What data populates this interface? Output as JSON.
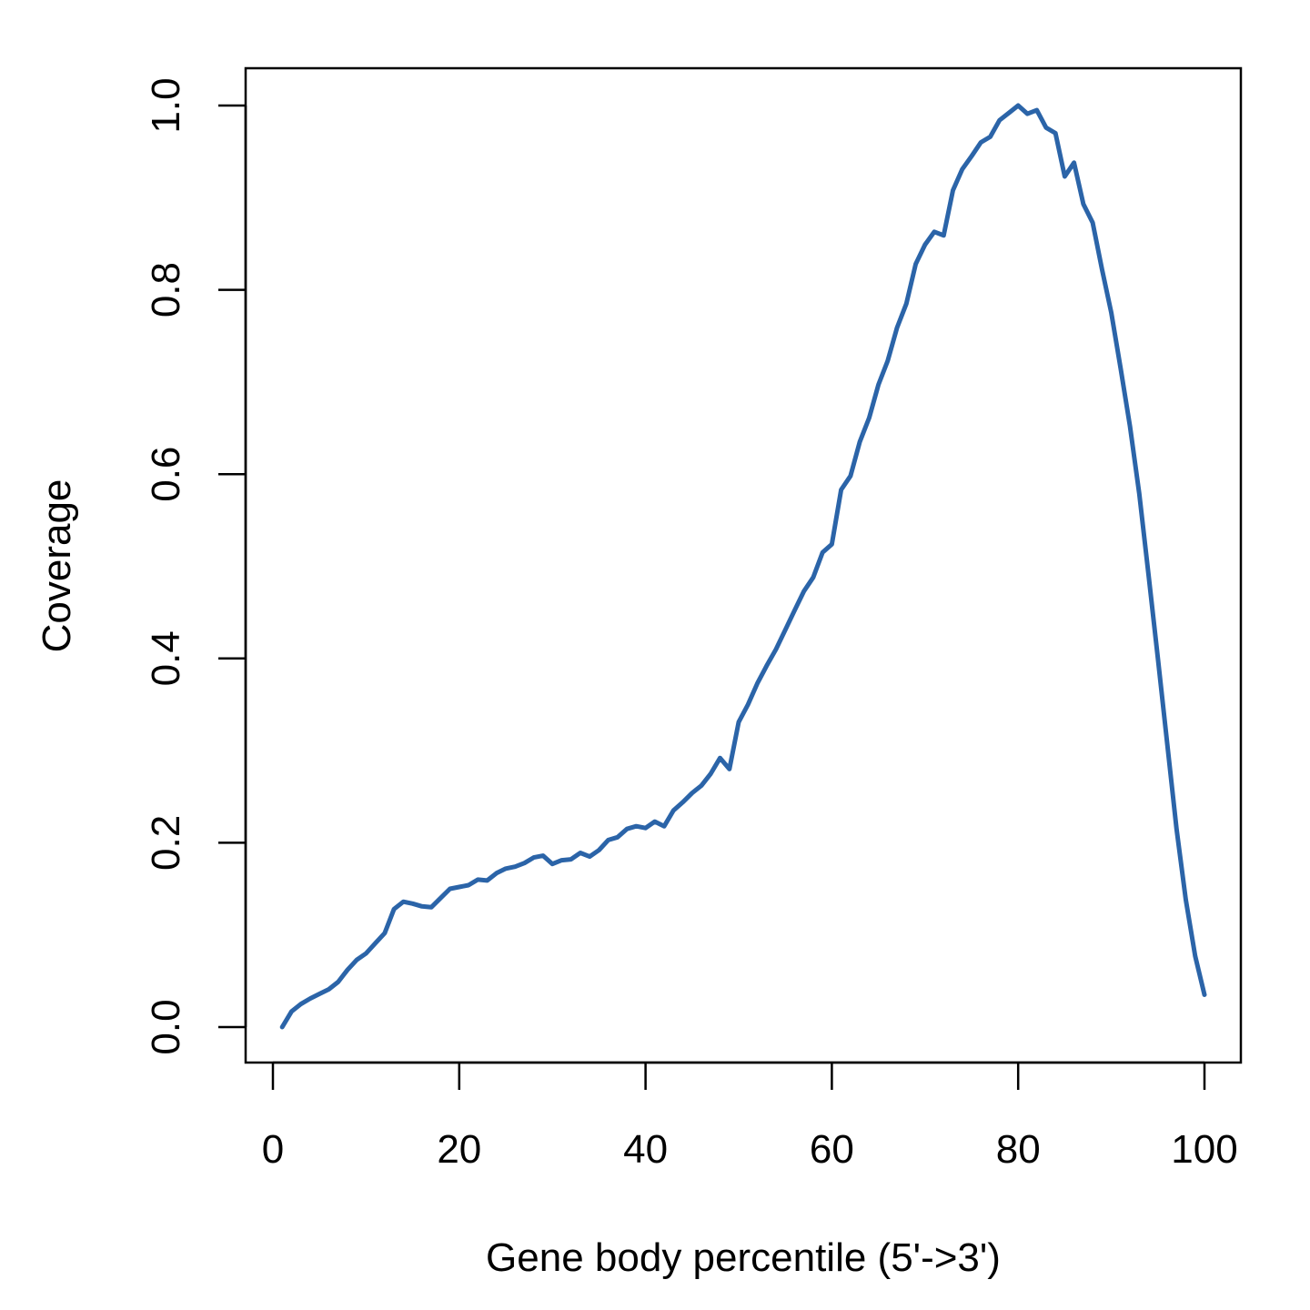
{
  "chart_data": {
    "type": "line",
    "title": "",
    "xlabel": "Gene body percentile (5'->3')",
    "ylabel": "Coverage",
    "xlim": [
      0,
      100
    ],
    "ylim": [
      0,
      1
    ],
    "x_ticks": [
      "0",
      "20",
      "40",
      "60",
      "80",
      "100"
    ],
    "x_tick_values": [
      0,
      20,
      40,
      60,
      80,
      100
    ],
    "y_ticks": [
      "0.0",
      "0.2",
      "0.4",
      "0.6",
      "0.8",
      "1.0"
    ],
    "y_tick_values": [
      0,
      0.2,
      0.4,
      0.6,
      0.8,
      1.0
    ],
    "grid": false,
    "legend": "none",
    "series_color": "#2b64a8",
    "series": [
      {
        "x": [
          1,
          2,
          3,
          4,
          5,
          6,
          7,
          8,
          9,
          10,
          11,
          12,
          13,
          14,
          15,
          16,
          17,
          18,
          19,
          20,
          21,
          22,
          23,
          24,
          25,
          26,
          27,
          28,
          29,
          30,
          31,
          32,
          33,
          34,
          35,
          36,
          37,
          38,
          39,
          40,
          41,
          42,
          43,
          44,
          45,
          46,
          47,
          48,
          49,
          50,
          51,
          52,
          53,
          54,
          55,
          56,
          57,
          58,
          59,
          60,
          61,
          62,
          63,
          64,
          65,
          66,
          67,
          68,
          69,
          70,
          71,
          72,
          73,
          74,
          75,
          76,
          77,
          78,
          79,
          80,
          81,
          82,
          83,
          84,
          85,
          86,
          87,
          88,
          89,
          90,
          91,
          92,
          93,
          94,
          95,
          96,
          97,
          98,
          99,
          100
        ],
        "values": [
          0.0,
          0.017,
          0.025,
          0.031,
          0.036,
          0.041,
          0.049,
          0.062,
          0.073,
          0.08,
          0.091,
          0.102,
          0.128,
          0.136,
          0.134,
          0.131,
          0.13,
          0.14,
          0.15,
          0.152,
          0.154,
          0.16,
          0.159,
          0.167,
          0.172,
          0.174,
          0.178,
          0.184,
          0.186,
          0.177,
          0.181,
          0.182,
          0.189,
          0.185,
          0.192,
          0.203,
          0.206,
          0.215,
          0.218,
          0.216,
          0.223,
          0.218,
          0.235,
          0.244,
          0.254,
          0.262,
          0.275,
          0.292,
          0.28,
          0.331,
          0.35,
          0.373,
          0.392,
          0.41,
          0.431,
          0.452,
          0.473,
          0.488,
          0.515,
          0.524,
          0.583,
          0.598,
          0.635,
          0.661,
          0.697,
          0.723,
          0.759,
          0.785,
          0.828,
          0.849,
          0.863,
          0.859,
          0.908,
          0.931,
          0.945,
          0.96,
          0.966,
          0.984,
          0.992,
          1.0,
          0.991,
          0.995,
          0.976,
          0.97,
          0.923,
          0.938,
          0.893,
          0.873,
          0.822,
          0.775,
          0.715,
          0.652,
          0.579,
          0.49,
          0.4,
          0.308,
          0.215,
          0.138,
          0.077,
          0.035
        ]
      }
    ]
  }
}
